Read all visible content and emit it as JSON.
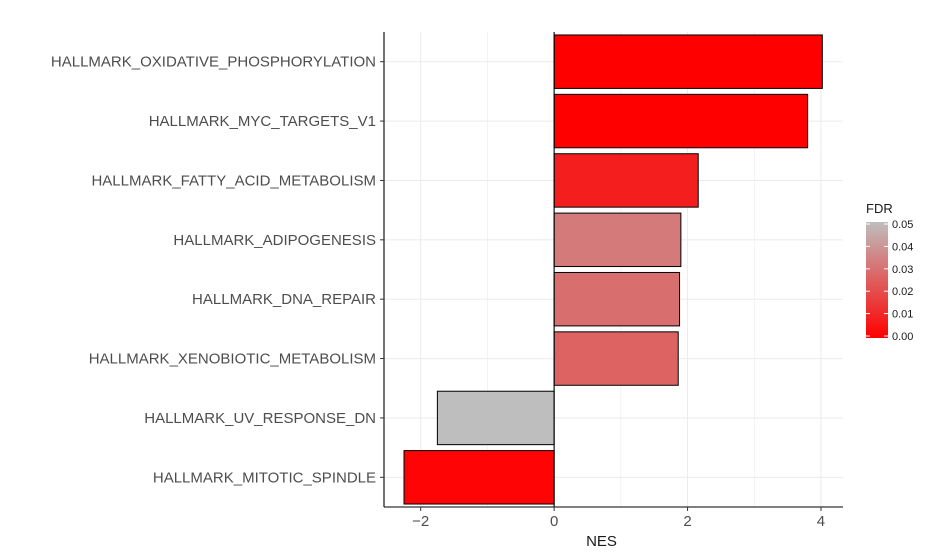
{
  "chart_data": {
    "type": "bar",
    "orientation": "horizontal",
    "categories": [
      "HALLMARK_OXIDATIVE_PHOSPHORYLATION",
      "HALLMARK_MYC_TARGETS_V1",
      "HALLMARK_FATTY_ACID_METABOLISM",
      "HALLMARK_ADIPOGENESIS",
      "HALLMARK_DNA_REPAIR",
      "HALLMARK_XENOBIOTIC_METABOLISM",
      "HALLMARK_UV_RESPONSE_DN",
      "HALLMARK_MITOTIC_SPINDLE"
    ],
    "values": [
      4.02,
      3.8,
      2.16,
      1.9,
      1.88,
      1.86,
      -1.75,
      -2.25
    ],
    "fdr": [
      0.0,
      0.0,
      0.008,
      0.032,
      0.029,
      0.026,
      0.05,
      0.001
    ],
    "xlabel": "NES",
    "ylabel": "",
    "xlim": [
      -2.55,
      4.33
    ],
    "xticks": [
      -2,
      0,
      2,
      4
    ],
    "grid": true,
    "legend": {
      "title": "FDR",
      "placement": "right",
      "ticks": [
        "0.05",
        "0.04",
        "0.03",
        "0.02",
        "0.01",
        "0.00"
      ],
      "range": [
        0,
        0.05
      ],
      "color_low": "#ff0000",
      "color_high": "#bebebe"
    },
    "colors": {
      "grid": "#ebebeb",
      "axis": "#000000",
      "bar_outline": "#000000"
    }
  }
}
